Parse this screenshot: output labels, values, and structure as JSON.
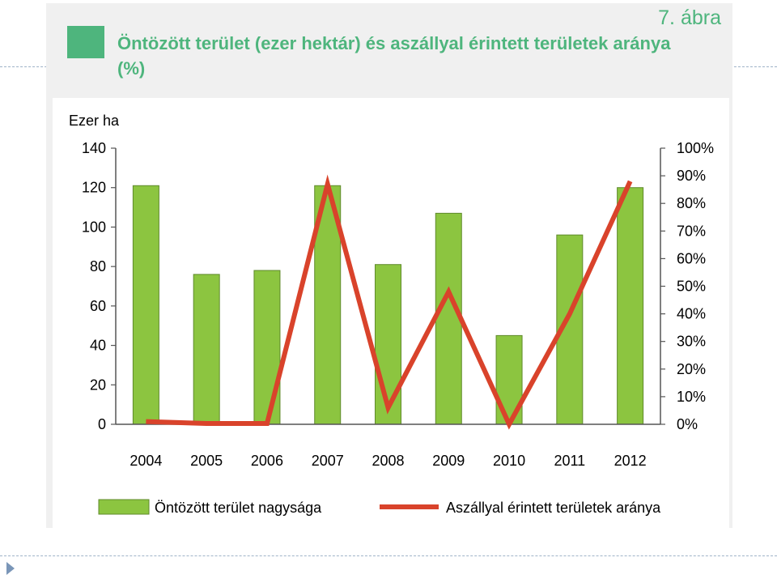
{
  "figure_number": "7. ábra",
  "title": "Öntözött terület (ezer hektár) és aszállyal érintett területek aránya (%)",
  "colors": {
    "accent": "#4eb57d",
    "bar": "#8cc540",
    "line": "#d9432b"
  },
  "chart_data": {
    "type": "bar",
    "categories": [
      "2004",
      "2005",
      "2006",
      "2007",
      "2008",
      "2009",
      "2010",
      "2011",
      "2012"
    ],
    "ylabel": "Ezer ha",
    "ylim": [
      0,
      140
    ],
    "y_ticks": [
      "0",
      "20",
      "40",
      "60",
      "80",
      "100",
      "120",
      "140"
    ],
    "y2lim": [
      0,
      100
    ],
    "y2_ticks": [
      "0%",
      "10%",
      "20%",
      "30%",
      "40%",
      "50%",
      "60%",
      "70%",
      "80%",
      "90%",
      "100%"
    ],
    "series": [
      {
        "name": "Öntözött terület nagysága",
        "type": "bar",
        "axis": "left",
        "values": [
          121,
          76,
          78,
          121,
          81,
          107,
          45,
          96,
          120
        ]
      },
      {
        "name": "Aszállyal érintett területek aránya",
        "type": "line",
        "axis": "right",
        "values": [
          1,
          0.3,
          0.3,
          87,
          6,
          48,
          0,
          40,
          88
        ]
      }
    ],
    "grid": false,
    "legend": "bottom"
  }
}
